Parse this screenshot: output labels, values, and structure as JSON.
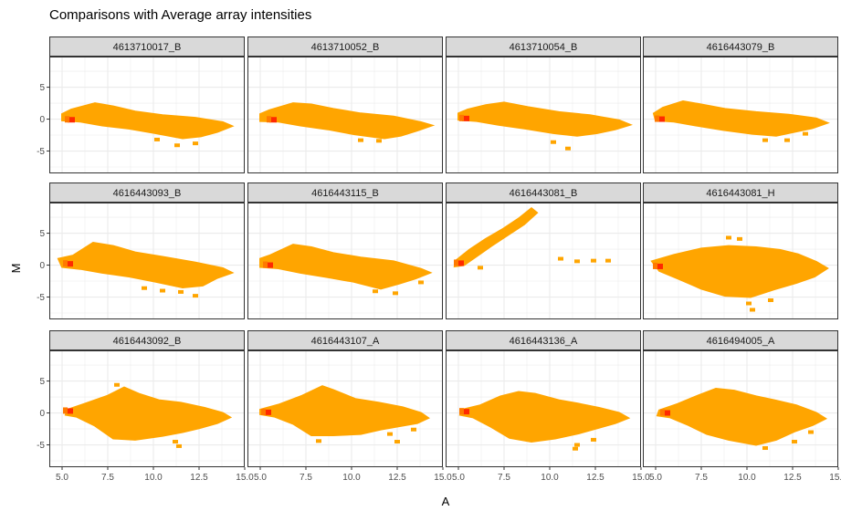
{
  "chart_data": {
    "type": "heatmap",
    "title": "Comparisons with Average array intensities",
    "xlabel": "A",
    "ylabel": "M",
    "xlim": [
      4.3,
      15.0
    ],
    "ylim": [
      -8.5,
      9.8
    ],
    "x_ticks": [
      5.0,
      7.5,
      10.0,
      12.5,
      15.0
    ],
    "x_tick_labels": [
      "5.0",
      "7.5",
      "10.0",
      "12.5",
      "15.0"
    ],
    "y_ticks": [
      5,
      0,
      -5
    ],
    "y_tick_labels": [
      "5",
      "0",
      "-5"
    ],
    "grid": true,
    "facet_grid": {
      "rows": 3,
      "cols": 4
    },
    "colors": {
      "fill": "#FFA500",
      "dense": "#FF2A00",
      "panel_border": "#333333",
      "strip_fill": "#D9D9D9",
      "grid": "#EBEBEB"
    },
    "panels": [
      {
        "name": "4613710017_B",
        "shape": {
          "pts": [
            [
              5.0,
              0.8
            ],
            [
              5.5,
              1.5
            ],
            [
              6.8,
              2.5
            ],
            [
              7.8,
              2.0
            ],
            [
              9.0,
              1.2
            ],
            [
              10.5,
              0.6
            ],
            [
              12.3,
              0.2
            ],
            [
              13.8,
              -0.5
            ],
            [
              14.3,
              -1.1
            ],
            [
              13.5,
              -2.0
            ],
            [
              12.6,
              -2.7
            ],
            [
              11.6,
              -3.0
            ],
            [
              10.1,
              -2.2
            ],
            [
              8.7,
              -1.5
            ],
            [
              7.2,
              -1.0
            ],
            [
              6.0,
              -0.4
            ],
            [
              5.0,
              -0.2
            ]
          ],
          "extras": [
            [
              12.3,
              -3.8
            ],
            [
              11.3,
              -4.1
            ],
            [
              10.2,
              -3.2
            ]
          ],
          "dense": [
            5.5,
            -0.1
          ]
        }
      },
      {
        "name": "4613710052_B",
        "shape": {
          "pts": [
            [
              5.0,
              0.8
            ],
            [
              5.5,
              1.4
            ],
            [
              6.8,
              2.5
            ],
            [
              7.8,
              2.3
            ],
            [
              9.0,
              1.6
            ],
            [
              10.5,
              0.9
            ],
            [
              12.3,
              0.4
            ],
            [
              13.8,
              -0.5
            ],
            [
              14.4,
              -1.0
            ],
            [
              13.6,
              -1.8
            ],
            [
              12.7,
              -2.6
            ],
            [
              11.8,
              -3.0
            ],
            [
              10.2,
              -2.4
            ],
            [
              8.7,
              -1.6
            ],
            [
              7.2,
              -1.0
            ],
            [
              6.0,
              -0.4
            ],
            [
              5.0,
              -0.3
            ]
          ],
          "extras": [
            [
              10.5,
              -3.3
            ],
            [
              11.5,
              -3.4
            ]
          ],
          "dense": [
            5.7,
            -0.1
          ]
        }
      },
      {
        "name": "4613710054_B",
        "shape": {
          "pts": [
            [
              5.0,
              0.9
            ],
            [
              5.5,
              1.5
            ],
            [
              6.5,
              2.2
            ],
            [
              7.5,
              2.6
            ],
            [
              8.8,
              1.9
            ],
            [
              10.5,
              1.1
            ],
            [
              12.2,
              0.6
            ],
            [
              13.8,
              -0.2
            ],
            [
              14.4,
              -0.9
            ],
            [
              13.6,
              -1.6
            ],
            [
              12.6,
              -2.2
            ],
            [
              11.5,
              -2.6
            ],
            [
              10.2,
              -2.2
            ],
            [
              8.7,
              -1.5
            ],
            [
              7.2,
              -0.9
            ],
            [
              6.0,
              -0.3
            ],
            [
              5.0,
              -0.1
            ]
          ],
          "extras": [
            [
              10.2,
              -3.6
            ],
            [
              11.0,
              -4.6
            ]
          ],
          "dense": [
            5.4,
            0.1
          ]
        }
      },
      {
        "name": "4616443079_B",
        "shape": {
          "pts": [
            [
              4.9,
              0.9
            ],
            [
              5.4,
              1.8
            ],
            [
              6.5,
              2.8
            ],
            [
              7.5,
              2.3
            ],
            [
              8.8,
              1.6
            ],
            [
              10.5,
              1.1
            ],
            [
              12.3,
              0.7
            ],
            [
              13.8,
              0.1
            ],
            [
              14.4,
              -0.6
            ],
            [
              13.6,
              -1.4
            ],
            [
              12.6,
              -2.0
            ],
            [
              11.6,
              -2.6
            ],
            [
              10.3,
              -2.3
            ],
            [
              8.7,
              -1.7
            ],
            [
              7.2,
              -1.0
            ],
            [
              6.0,
              -0.4
            ],
            [
              5.0,
              -0.2
            ]
          ],
          "extras": [
            [
              11.0,
              -3.3
            ],
            [
              12.2,
              -3.3
            ],
            [
              13.2,
              -2.3
            ]
          ],
          "dense": [
            5.3,
            0.0
          ]
        }
      },
      {
        "name": "4616443093_B",
        "shape": {
          "pts": [
            [
              4.8,
              1.0
            ],
            [
              5.6,
              1.5
            ],
            [
              6.7,
              3.5
            ],
            [
              7.8,
              3.0
            ],
            [
              9.0,
              2.0
            ],
            [
              10.5,
              1.3
            ],
            [
              12.3,
              0.4
            ],
            [
              13.8,
              -0.5
            ],
            [
              14.3,
              -1.2
            ],
            [
              13.5,
              -2.0
            ],
            [
              12.7,
              -3.2
            ],
            [
              11.6,
              -3.5
            ],
            [
              10.1,
              -2.6
            ],
            [
              8.7,
              -1.8
            ],
            [
              7.2,
              -1.2
            ],
            [
              6.0,
              -0.6
            ],
            [
              5.0,
              -0.3
            ]
          ],
          "extras": [
            [
              9.5,
              -3.6
            ],
            [
              10.5,
              -4.0
            ],
            [
              11.5,
              -4.2
            ],
            [
              12.3,
              -4.8
            ]
          ],
          "dense": [
            5.4,
            0.2
          ]
        }
      },
      {
        "name": "4616443115_B",
        "shape": {
          "pts": [
            [
              5.0,
              1.0
            ],
            [
              5.5,
              1.5
            ],
            [
              6.8,
              3.2
            ],
            [
              7.8,
              2.8
            ],
            [
              9.0,
              1.9
            ],
            [
              10.5,
              1.2
            ],
            [
              12.3,
              0.6
            ],
            [
              13.8,
              -0.6
            ],
            [
              14.3,
              -1.2
            ],
            [
              13.5,
              -2.1
            ],
            [
              12.6,
              -2.9
            ],
            [
              11.6,
              -3.7
            ],
            [
              10.1,
              -2.6
            ],
            [
              8.7,
              -1.9
            ],
            [
              7.2,
              -1.2
            ],
            [
              6.0,
              -0.5
            ],
            [
              5.0,
              -0.3
            ]
          ],
          "extras": [
            [
              12.4,
              -4.4
            ],
            [
              11.3,
              -4.1
            ],
            [
              13.8,
              -2.7
            ]
          ],
          "dense": [
            5.5,
            0.0
          ]
        }
      },
      {
        "name": "4616443081_B",
        "shape": {
          "pts": [
            [
              4.9,
              0.8
            ],
            [
              5.6,
              2.4
            ],
            [
              6.5,
              4.1
            ],
            [
              7.4,
              5.6
            ],
            [
              8.3,
              7.3
            ],
            [
              9.0,
              8.9
            ],
            [
              9.3,
              8.2
            ],
            [
              8.6,
              6.4
            ],
            [
              7.7,
              4.7
            ],
            [
              6.8,
              3.0
            ],
            [
              6.0,
              1.4
            ],
            [
              5.3,
              0.0
            ],
            [
              4.8,
              -0.2
            ]
          ],
          "extras": [
            [
              6.2,
              -0.4
            ],
            [
              10.6,
              1.0
            ],
            [
              11.5,
              0.6
            ],
            [
              12.4,
              0.7
            ],
            [
              13.2,
              0.7
            ]
          ],
          "dense": [
            5.1,
            0.3
          ]
        }
      },
      {
        "name": "4616443081_H",
        "shape": {
          "pts": [
            [
              4.8,
              0.6
            ],
            [
              6.0,
              1.6
            ],
            [
              7.5,
              2.6
            ],
            [
              9.0,
              3.0
            ],
            [
              10.5,
              2.8
            ],
            [
              11.8,
              2.4
            ],
            [
              12.8,
              1.7
            ],
            [
              13.8,
              0.5
            ],
            [
              14.4,
              -0.5
            ],
            [
              13.7,
              -1.8
            ],
            [
              12.7,
              -2.8
            ],
            [
              11.5,
              -3.8
            ],
            [
              10.2,
              -5.0
            ],
            [
              8.8,
              -4.8
            ],
            [
              7.5,
              -3.7
            ],
            [
              6.3,
              -2.2
            ],
            [
              5.2,
              -0.9
            ]
          ],
          "extras": [
            [
              9.0,
              4.3
            ],
            [
              9.6,
              4.1
            ],
            [
              10.1,
              -6.0
            ],
            [
              10.3,
              -7.0
            ],
            [
              11.3,
              -5.5
            ]
          ],
          "dense": [
            5.2,
            -0.2
          ]
        }
      },
      {
        "name": "4616443092_B",
        "shape": {
          "pts": [
            [
              5.3,
              0.5
            ],
            [
              6.2,
              1.4
            ],
            [
              7.5,
              2.7
            ],
            [
              8.4,
              4.0
            ],
            [
              9.2,
              3.0
            ],
            [
              10.3,
              2.0
            ],
            [
              11.5,
              1.6
            ],
            [
              12.8,
              0.8
            ],
            [
              13.8,
              0.0
            ],
            [
              14.2,
              -0.7
            ],
            [
              13.5,
              -1.6
            ],
            [
              12.5,
              -2.4
            ],
            [
              11.6,
              -3.0
            ],
            [
              10.5,
              -3.6
            ],
            [
              9.0,
              -4.2
            ],
            [
              7.8,
              -4.0
            ],
            [
              6.8,
              -2.0
            ],
            [
              5.8,
              -0.6
            ],
            [
              5.2,
              -0.3
            ]
          ],
          "extras": [
            [
              11.2,
              -4.5
            ],
            [
              11.4,
              -5.2
            ],
            [
              8.0,
              4.4
            ]
          ],
          "dense": [
            5.4,
            0.3
          ]
        }
      },
      {
        "name": "4616443107_A",
        "shape": {
          "pts": [
            [
              5.0,
              0.5
            ],
            [
              6.0,
              1.3
            ],
            [
              7.3,
              2.7
            ],
            [
              8.4,
              4.2
            ],
            [
              9.0,
              3.6
            ],
            [
              10.2,
              2.2
            ],
            [
              11.5,
              1.6
            ],
            [
              12.8,
              0.9
            ],
            [
              13.8,
              0.0
            ],
            [
              14.2,
              -0.8
            ],
            [
              13.6,
              -1.6
            ],
            [
              12.6,
              -2.1
            ],
            [
              11.6,
              -2.6
            ],
            [
              10.5,
              -3.3
            ],
            [
              9.0,
              -3.5
            ],
            [
              7.8,
              -3.5
            ],
            [
              6.8,
              -1.7
            ],
            [
              5.8,
              -0.6
            ],
            [
              5.0,
              -0.2
            ]
          ],
          "extras": [
            [
              12.1,
              -3.3
            ],
            [
              12.5,
              -4.5
            ],
            [
              13.4,
              -2.6
            ],
            [
              8.2,
              -4.4
            ]
          ],
          "dense": [
            5.4,
            0.1
          ]
        }
      },
      {
        "name": "4616443136_A",
        "shape": {
          "pts": [
            [
              5.2,
              0.5
            ],
            [
              6.2,
              1.2
            ],
            [
              7.3,
              2.6
            ],
            [
              8.3,
              3.3
            ],
            [
              9.2,
              3.0
            ],
            [
              10.5,
              2.0
            ],
            [
              11.5,
              1.5
            ],
            [
              12.7,
              0.8
            ],
            [
              13.8,
              0.0
            ],
            [
              14.3,
              -0.8
            ],
            [
              13.6,
              -1.6
            ],
            [
              12.6,
              -2.4
            ],
            [
              11.6,
              -3.2
            ],
            [
              10.3,
              -4.0
            ],
            [
              9.0,
              -4.5
            ],
            [
              7.8,
              -3.9
            ],
            [
              6.8,
              -2.2
            ],
            [
              5.8,
              -0.7
            ],
            [
              5.1,
              -0.3
            ]
          ],
          "extras": [
            [
              12.4,
              -4.2
            ],
            [
              11.5,
              -5.0
            ],
            [
              11.4,
              -5.6
            ]
          ],
          "dense": [
            5.4,
            0.2
          ]
        }
      },
      {
        "name": "4616494005_A",
        "shape": {
          "pts": [
            [
              5.2,
              0.4
            ],
            [
              6.2,
              1.4
            ],
            [
              7.3,
              2.7
            ],
            [
              8.3,
              3.8
            ],
            [
              9.3,
              3.5
            ],
            [
              10.5,
              2.6
            ],
            [
              11.5,
              2.0
            ],
            [
              12.7,
              1.2
            ],
            [
              13.8,
              0.0
            ],
            [
              14.3,
              -0.9
            ],
            [
              13.6,
              -1.9
            ],
            [
              12.6,
              -2.9
            ],
            [
              11.6,
              -4.2
            ],
            [
              10.5,
              -5.0
            ],
            [
              9.0,
              -4.2
            ],
            [
              7.8,
              -3.3
            ],
            [
              6.8,
              -1.9
            ],
            [
              5.8,
              -0.7
            ],
            [
              5.1,
              -0.4
            ]
          ],
          "extras": [
            [
              11.0,
              -5.5
            ],
            [
              12.6,
              -4.5
            ],
            [
              13.5,
              -3.0
            ]
          ],
          "dense": [
            5.6,
            0.0
          ]
        }
      }
    ]
  }
}
